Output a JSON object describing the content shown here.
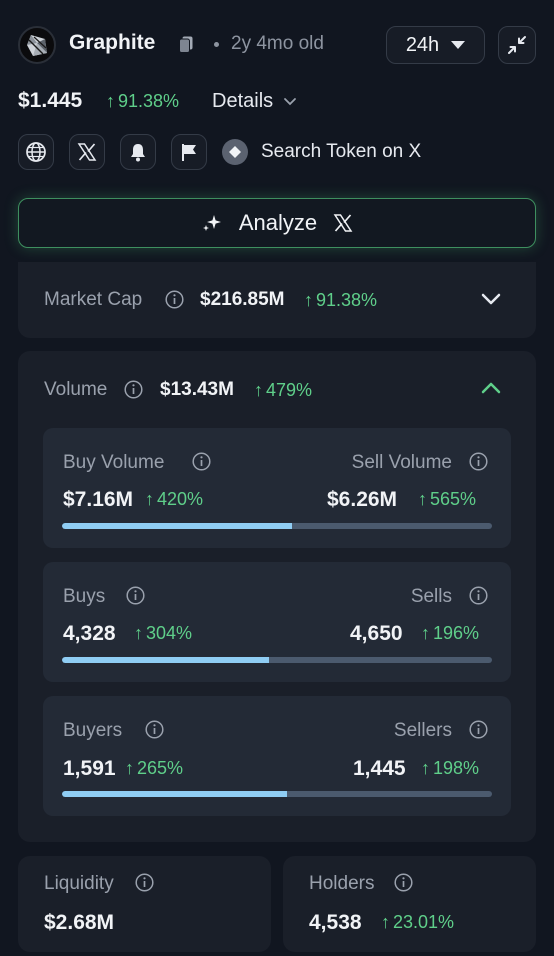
{
  "token": {
    "name": "Graphite",
    "age": "2y 4mo old",
    "timeframe": "24h",
    "price": "$1.445",
    "price_change": "91.38%",
    "details_label": "Details",
    "search_label": "Search Token on X",
    "analyze_label": "Analyze"
  },
  "market_cap": {
    "label": "Market Cap",
    "value": "$216.85M",
    "change": "91.38%"
  },
  "volume": {
    "label": "Volume",
    "value": "$13.43M",
    "change": "479%",
    "buy_volume": {
      "label": "Buy Volume",
      "value": "$7.16M",
      "change": "420%"
    },
    "sell_volume": {
      "label": "Sell Volume",
      "value": "$6.26M",
      "change": "565%"
    },
    "buy_volume_share": 0.534,
    "buys": {
      "label": "Buys",
      "value": "4,328",
      "change": "304%"
    },
    "sells": {
      "label": "Sells",
      "value": "4,650",
      "change": "196%"
    },
    "buys_share": 0.482,
    "buyers": {
      "label": "Buyers",
      "value": "1,591",
      "change": "265%"
    },
    "sellers": {
      "label": "Sellers",
      "value": "1,445",
      "change": "198%"
    },
    "buyers_share": 0.524
  },
  "liquidity": {
    "label": "Liquidity",
    "value": "$2.68M"
  },
  "holders": {
    "label": "Holders",
    "value": "4,538",
    "change": "23.01%"
  },
  "colors": {
    "positive": "#5fcf8a",
    "bar_fill": "#8fcdf4",
    "bar_track": "#4b5a6e",
    "analyze_border": "#3e8f5f"
  }
}
